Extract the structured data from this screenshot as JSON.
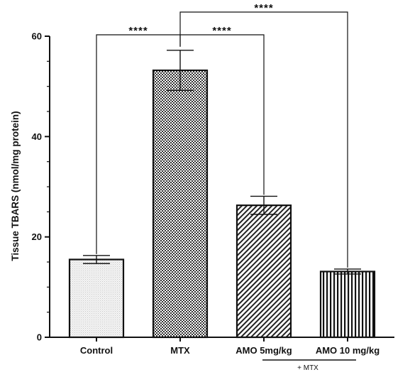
{
  "chart_data": {
    "type": "bar",
    "ylabel": "Tissue TBARS (nmol/mg protein)",
    "ylim": [
      0,
      60
    ],
    "yticks": [
      0,
      20,
      40,
      60
    ],
    "grid": false,
    "categories": [
      "Control",
      "MTX",
      "AMO 5mg/kg",
      "AMO 10 mg/kg"
    ],
    "values": [
      15.5,
      53.2,
      26.3,
      13.1
    ],
    "errors": [
      0.8,
      4.0,
      1.8,
      0.5
    ],
    "patterns": [
      "light-dots",
      "checkerboard",
      "diagonal-stripes",
      "vertical-stripes"
    ],
    "group_label": "+ MTX",
    "group_label_categories": [
      "AMO 5mg/kg",
      "AMO 10 mg/kg"
    ],
    "significance": [
      {
        "from": "Control",
        "to": "MTX",
        "label": "****"
      },
      {
        "from": "MTX",
        "to": "AMO 5mg/kg",
        "label": "****"
      },
      {
        "from": "MTX",
        "to": "AMO 10 mg/kg",
        "label": "****"
      }
    ]
  }
}
